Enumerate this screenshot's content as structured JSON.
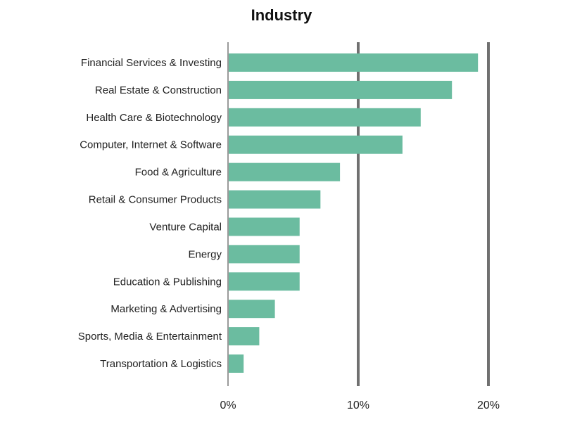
{
  "chart_data": {
    "type": "bar",
    "orientation": "horizontal",
    "title": "Industry",
    "xlabel": "",
    "ylabel": "",
    "categories": [
      "Financial Services & Investing",
      "Real Estate & Construction",
      "Health Care & Biotechnology",
      "Computer, Internet & Software",
      "Food & Agriculture",
      "Retail & Consumer Products",
      "Venture Capital",
      "Energy",
      "Education & Publishing",
      "Marketing & Advertising",
      "Sports, Media & Entertainment",
      "Transportation & Logistics"
    ],
    "values": [
      19.2,
      17.2,
      14.8,
      13.4,
      8.6,
      7.1,
      5.5,
      5.5,
      5.5,
      3.6,
      2.4,
      1.2
    ],
    "unit": "%",
    "xlim": [
      0,
      20
    ],
    "xticks": [
      0,
      10,
      20
    ],
    "xtick_labels": [
      "0%",
      "10%",
      "20%"
    ],
    "grid": "vertical gridlines at 10% and 20%",
    "legend": "none",
    "colors": {
      "bar": "#6bbca0",
      "gridline": "#707070",
      "axis": "#9a9a9a",
      "text": "#222222"
    }
  }
}
